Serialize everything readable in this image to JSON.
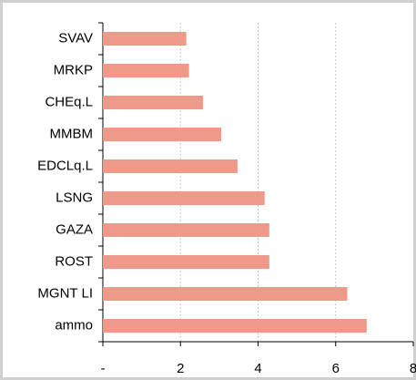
{
  "chart_data": {
    "type": "bar",
    "orientation": "horizontal",
    "categories": [
      "SVAV",
      "MRKP",
      "CHEq.L",
      "MMBM",
      "EDCLq.L",
      "LSNG",
      "GAZA",
      "ROST",
      "MGNT LI",
      "ammo"
    ],
    "values": [
      2.15,
      2.22,
      2.58,
      3.05,
      3.47,
      4.17,
      4.29,
      4.29,
      6.3,
      6.8
    ],
    "color": "#ef9a88",
    "xlim": [
      0,
      8
    ],
    "xticks": [
      {
        "value": 0,
        "label": "-"
      },
      2,
      4,
      6,
      8
    ],
    "grid": true
  }
}
